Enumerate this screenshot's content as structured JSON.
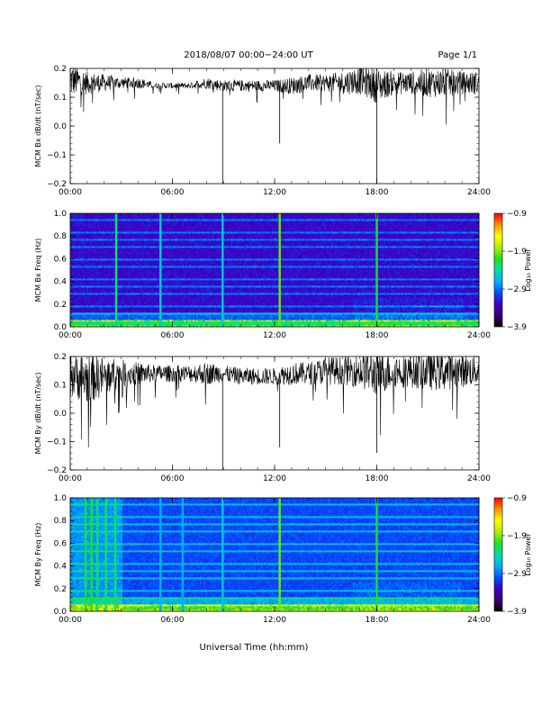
{
  "header": {
    "title": "2018/08/07  00:00−24:00 UT",
    "page": "Page 1/1"
  },
  "xlabel": "Universal Time (hh:mm)",
  "colors": {
    "colormap": [
      "#000000",
      "#3a0070",
      "#4000c0",
      "#0050ff",
      "#00b0ff",
      "#00e0a0",
      "#20e020",
      "#b0f000",
      "#ffff00",
      "#ff9000",
      "#ff0000"
    ],
    "trace": "#000000"
  },
  "chart_data": [
    {
      "type": "line",
      "ylabel": "MCM Bx dB/dt (nT/sec)",
      "xlim": [
        0,
        24
      ],
      "ylim": [
        -0.2,
        0.2
      ],
      "xticks": [
        "00:00",
        "06:00",
        "12:00",
        "18:00",
        "24:00"
      ],
      "yticks": [
        "0.2",
        "0.1",
        "0.0",
        "−0.1",
        "−0.2"
      ],
      "series": [
        {
          "x": [
            0,
            1,
            2,
            3,
            4,
            5,
            6,
            7,
            8,
            9,
            10,
            11,
            12,
            13,
            14,
            15,
            16,
            17,
            18,
            19,
            20,
            21,
            22,
            23,
            24
          ],
          "y": [
            0.16,
            0.15,
            0.15,
            0.15,
            0.15,
            0.14,
            0.14,
            0.14,
            0.15,
            0.14,
            0.14,
            0.14,
            0.14,
            0.14,
            0.15,
            0.15,
            0.15,
            0.16,
            0.14,
            0.15,
            0.15,
            0.15,
            0.15,
            0.15,
            0.15
          ],
          "amplitude": [
            0.06,
            0.04,
            0.03,
            0.02,
            0.02,
            0.01,
            0.01,
            0.01,
            0.02,
            0.02,
            0.02,
            0.02,
            0.02,
            0.03,
            0.03,
            0.03,
            0.04,
            0.05,
            0.06,
            0.04,
            0.04,
            0.05,
            0.05,
            0.04,
            0.04
          ]
        }
      ],
      "spikes": [
        {
          "x": 8.95,
          "y": -0.2
        },
        {
          "x": 12.3,
          "y": -0.06
        },
        {
          "x": 18.0,
          "y": -0.2
        }
      ]
    },
    {
      "type": "heatmap",
      "ylabel": "MCM Bx Freq (Hz)",
      "xlim": [
        0,
        24
      ],
      "ylim": [
        0,
        1.0
      ],
      "xticks": [
        "00:00",
        "06:00",
        "12:00",
        "18:00",
        "24:00"
      ],
      "yticks": [
        "1.0",
        "0.8",
        "0.6",
        "0.4",
        "0.2",
        "0.0"
      ],
      "colorbar": {
        "label": "Log₁₀ Power",
        "ticks": [
          "−0.9",
          "−1.9",
          "−2.9",
          "−3.9"
        ],
        "range": [
          -3.9,
          -0.9
        ]
      },
      "harmonic_spacing_hz": 0.059,
      "vertical_lines": [
        {
          "x": 2.7,
          "level": 0.55
        },
        {
          "x": 5.3,
          "level": 0.45
        },
        {
          "x": 8.95,
          "level": 0.45
        },
        {
          "x": 12.3,
          "level": 0.65
        },
        {
          "x": 18.0,
          "level": 0.6
        }
      ]
    },
    {
      "type": "line",
      "ylabel": "MCM By dB/dt (nT/sec)",
      "xlim": [
        0,
        24
      ],
      "ylim": [
        -0.2,
        0.2
      ],
      "xticks": [
        "00:00",
        "06:00",
        "12:00",
        "18:00",
        "24:00"
      ],
      "yticks": [
        "0.2",
        "0.1",
        "0.0",
        "−0.1",
        "−0.2"
      ],
      "series": [
        {
          "x": [
            0,
            1,
            2,
            3,
            4,
            5,
            6,
            7,
            8,
            9,
            10,
            11,
            12,
            13,
            14,
            15,
            16,
            17,
            18,
            19,
            20,
            21,
            22,
            23,
            24
          ],
          "y": [
            0.14,
            0.12,
            0.13,
            0.14,
            0.14,
            0.14,
            0.14,
            0.14,
            0.14,
            0.14,
            0.13,
            0.13,
            0.13,
            0.14,
            0.14,
            0.15,
            0.15,
            0.15,
            0.14,
            0.15,
            0.15,
            0.15,
            0.15,
            0.15,
            0.15
          ],
          "amplitude": [
            0.08,
            0.09,
            0.07,
            0.05,
            0.04,
            0.03,
            0.03,
            0.03,
            0.04,
            0.03,
            0.03,
            0.03,
            0.03,
            0.04,
            0.04,
            0.05,
            0.05,
            0.06,
            0.08,
            0.06,
            0.06,
            0.07,
            0.07,
            0.06,
            0.05
          ]
        }
      ],
      "spikes": [
        {
          "x": 8.95,
          "y": -0.2
        },
        {
          "x": 12.3,
          "y": -0.12
        },
        {
          "x": 18.0,
          "y": -0.14
        }
      ]
    },
    {
      "type": "heatmap",
      "ylabel": "MCM By Freq (Hz)",
      "xlim": [
        0,
        24
      ],
      "ylim": [
        0,
        1.0
      ],
      "xticks": [
        "00:00",
        "06:00",
        "12:00",
        "18:00",
        "24:00"
      ],
      "yticks": [
        "1.0",
        "0.8",
        "0.6",
        "0.4",
        "0.2",
        "0.0"
      ],
      "colorbar": {
        "label": "Log₁₀ Power",
        "ticks": [
          "−0.9",
          "−1.9",
          "−2.9",
          "−3.9"
        ],
        "range": [
          -3.9,
          -0.9
        ]
      },
      "harmonic_spacing_hz": 0.059,
      "vertical_lines": [
        {
          "x": 0.9,
          "level": 0.6
        },
        {
          "x": 1.25,
          "level": 0.6
        },
        {
          "x": 1.6,
          "level": 0.55
        },
        {
          "x": 2.1,
          "level": 0.55
        },
        {
          "x": 2.65,
          "level": 0.55
        },
        {
          "x": 5.3,
          "level": 0.4
        },
        {
          "x": 6.6,
          "level": 0.4
        },
        {
          "x": 8.95,
          "level": 0.45
        },
        {
          "x": 12.3,
          "level": 0.65
        },
        {
          "x": 18.0,
          "level": 0.6
        }
      ]
    }
  ]
}
